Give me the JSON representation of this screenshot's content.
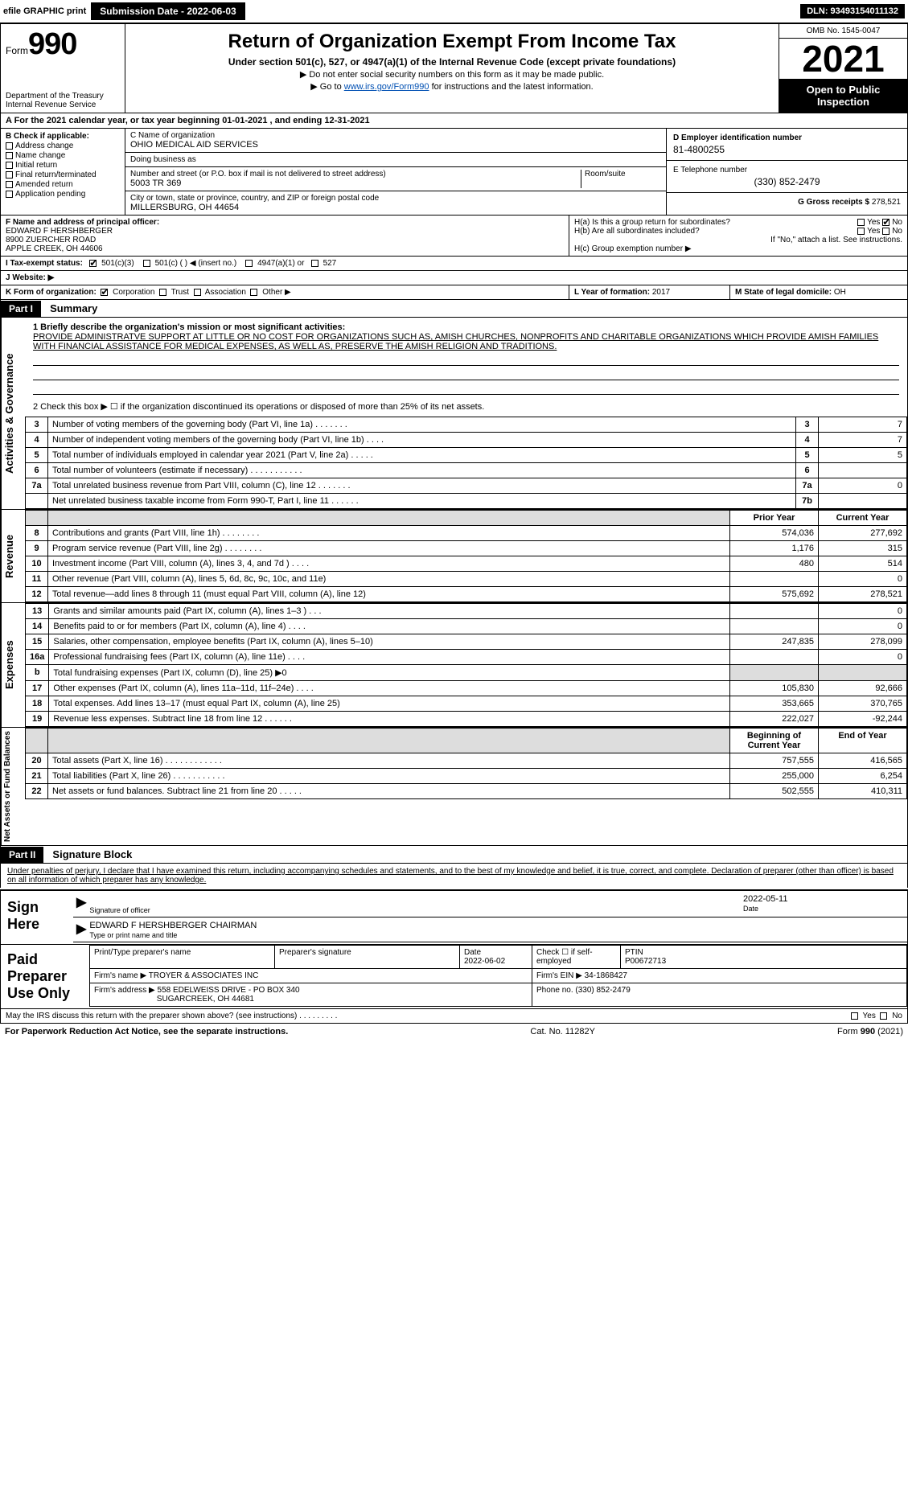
{
  "topbar": {
    "efile_label": "efile GRAPHIC print",
    "submission_label": "Submission Date - 2022-06-03",
    "dln_label": "DLN: 93493154011132"
  },
  "header": {
    "form_word": "Form",
    "form_number": "990",
    "dept": "Department of the Treasury",
    "irs": "Internal Revenue Service",
    "title": "Return of Organization Exempt From Income Tax",
    "subtitle": "Under section 501(c), 527, or 4947(a)(1) of the Internal Revenue Code (except private foundations)",
    "note1": "▶ Do not enter social security numbers on this form as it may be made public.",
    "note2_pre": "▶ Go to ",
    "note2_link": "www.irs.gov/Form990",
    "note2_post": " for instructions and the latest information.",
    "omb": "OMB No. 1545-0047",
    "year": "2021",
    "otp": "Open to Public Inspection"
  },
  "line_a": "A For the 2021 calendar year, or tax year beginning 01-01-2021    , and ending 12-31-2021",
  "box_b": {
    "heading": "B Check if applicable:",
    "items": [
      "Address change",
      "Name change",
      "Initial return",
      "Final return/terminated",
      "Amended return",
      "Application pending"
    ]
  },
  "box_c": {
    "name_label": "C Name of organization",
    "name": "OHIO MEDICAL AID SERVICES",
    "dba_label": "Doing business as",
    "dba": "",
    "street_label": "Number and street (or P.O. box if mail is not delivered to street address)",
    "room_label": "Room/suite",
    "street": "5003 TR 369",
    "city_label": "City or town, state or province, country, and ZIP or foreign postal code",
    "city": "MILLERSBURG, OH  44654"
  },
  "box_d": {
    "label": "D Employer identification number",
    "value": "81-4800255"
  },
  "box_e": {
    "label": "E Telephone number",
    "value": "(330) 852-2479"
  },
  "box_g": {
    "label": "G Gross receipts $",
    "value": "278,521"
  },
  "box_f": {
    "label": "F  Name and address of principal officer:",
    "l1": "EDWARD F HERSHBERGER",
    "l2": "8900 ZUERCHER ROAD",
    "l3": "APPLE CREEK, OH  44606"
  },
  "box_h": {
    "a_label": "H(a)  Is this a group return for subordinates?",
    "a_yes": "Yes",
    "a_no": "No",
    "b_label": "H(b)  Are all subordinates included?",
    "b_yes": "Yes",
    "b_no": "No",
    "b_note": "If \"No,\" attach a list. See instructions.",
    "c_label": "H(c)  Group exemption number ▶"
  },
  "box_i": {
    "label": "I  Tax-exempt status:",
    "o1": "501(c)(3)",
    "o2": "501(c) (  ) ◀ (insert no.)",
    "o3": "4947(a)(1) or",
    "o4": "527"
  },
  "box_j": {
    "label": "J  Website: ▶",
    "value": ""
  },
  "box_k": {
    "label": "K Form of organization:",
    "o1": "Corporation",
    "o2": "Trust",
    "o3": "Association",
    "o4": "Other ▶"
  },
  "box_l": {
    "label": "L Year of formation:",
    "value": "2017"
  },
  "box_m": {
    "label": "M State of legal domicile:",
    "value": "OH"
  },
  "part1": {
    "tag": "Part I",
    "title": "Summary",
    "l1_label": "1 Briefly describe the organization's mission or most significant activities:",
    "mission": "PROVIDE ADMINISTRATVE SUPPORT AT LITTLE OR NO COST FOR ORGANIZATIONS SUCH AS, AMISH CHURCHES, NONPROFITS AND CHARITABLE ORGANIZATIONS WHICH PROVIDE AMISH FAMILIES WITH FINANCIAL ASSISTANCE FOR MEDICAL EXPENSES, AS WELL AS, PRESERVE THE AMISH RELIGION AND TRADITIONS.",
    "l2": "2  Check this box ▶ ☐  if the organization discontinued its operations or disposed of more than 25% of its net assets.",
    "gov_rows": [
      {
        "n": "3",
        "t": "Number of voting members of the governing body (Part VI, line 1a)   .    .    .    .    .    .    .",
        "box": "3",
        "v": "7"
      },
      {
        "n": "4",
        "t": "Number of independent voting members of the governing body (Part VI, line 1b)  .    .    .    .",
        "box": "4",
        "v": "7"
      },
      {
        "n": "5",
        "t": "Total number of individuals employed in calendar year 2021 (Part V, line 2a)  .    .    .    .    .",
        "box": "5",
        "v": "5"
      },
      {
        "n": "6",
        "t": "Total number of volunteers (estimate if necessary)   .    .    .    .    .    .    .    .    .    .    .",
        "box": "6",
        "v": ""
      },
      {
        "n": "7a",
        "t": "Total unrelated business revenue from Part VIII, column (C), line 12  .    .    .    .    .    .    .",
        "box": "7a",
        "v": "0"
      },
      {
        "n": "",
        "t": "Net unrelated business taxable income from Form 990-T, Part I, line 11  .    .    .    .    .    .",
        "box": "7b",
        "v": ""
      }
    ],
    "col_prior": "Prior Year",
    "col_current": "Current Year",
    "rev_rows": [
      {
        "n": "8",
        "t": "Contributions and grants (Part VIII, line 1h)   .    .    .    .    .    .    .    .",
        "p": "574,036",
        "c": "277,692"
      },
      {
        "n": "9",
        "t": "Program service revenue (Part VIII, line 2g)   .    .    .    .    .    .    .    .",
        "p": "1,176",
        "c": "315"
      },
      {
        "n": "10",
        "t": "Investment income (Part VIII, column (A), lines 3, 4, and 7d )  .    .    .    .",
        "p": "480",
        "c": "514"
      },
      {
        "n": "11",
        "t": "Other revenue (Part VIII, column (A), lines 5, 6d, 8c, 9c, 10c, and 11e)",
        "p": "",
        "c": "0"
      },
      {
        "n": "12",
        "t": "Total revenue—add lines 8 through 11 (must equal Part VIII, column (A), line 12)",
        "p": "575,692",
        "c": "278,521"
      }
    ],
    "exp_rows": [
      {
        "n": "13",
        "t": "Grants and similar amounts paid (Part IX, column (A), lines 1–3 )  .    .    .",
        "p": "",
        "c": "0"
      },
      {
        "n": "14",
        "t": "Benefits paid to or for members (Part IX, column (A), line 4)  .    .    .    .",
        "p": "",
        "c": "0"
      },
      {
        "n": "15",
        "t": "Salaries, other compensation, employee benefits (Part IX, column (A), lines 5–10)",
        "p": "247,835",
        "c": "278,099"
      },
      {
        "n": "16a",
        "t": "Professional fundraising fees (Part IX, column (A), line 11e)  .    .    .    .",
        "p": "",
        "c": "0"
      },
      {
        "n": "b",
        "t": "Total fundraising expenses (Part IX, column (D), line 25) ▶0",
        "p": "__shade__",
        "c": "__shade__"
      },
      {
        "n": "17",
        "t": "Other expenses (Part IX, column (A), lines 11a–11d, 11f–24e)   .    .    .    .",
        "p": "105,830",
        "c": "92,666"
      },
      {
        "n": "18",
        "t": "Total expenses. Add lines 13–17 (must equal Part IX, column (A), line 25)",
        "p": "353,665",
        "c": "370,765"
      },
      {
        "n": "19",
        "t": "Revenue less expenses. Subtract line 18 from line 12  .    .    .    .    .    .",
        "p": "222,027",
        "c": "-92,244"
      }
    ],
    "col_begin": "Beginning of Current Year",
    "col_end": "End of Year",
    "net_rows": [
      {
        "n": "20",
        "t": "Total assets (Part X, line 16)  .    .    .    .    .    .    .    .    .    .    .    .",
        "p": "757,555",
        "c": "416,565"
      },
      {
        "n": "21",
        "t": "Total liabilities (Part X, line 26)  .    .    .    .    .    .    .    .    .    .    .",
        "p": "255,000",
        "c": "6,254"
      },
      {
        "n": "22",
        "t": "Net assets or fund balances. Subtract line 21 from line 20  .    .    .    .    .",
        "p": "502,555",
        "c": "410,311"
      }
    ],
    "vlabels": {
      "gov": "Activities & Governance",
      "rev": "Revenue",
      "exp": "Expenses",
      "net": "Net Assets or Fund Balances"
    }
  },
  "part2": {
    "tag": "Part II",
    "title": "Signature Block",
    "penalty": "Under penalties of perjury, I declare that I have examined this return, including accompanying schedules and statements, and to the best of my knowledge and belief, it is true, correct, and complete. Declaration of preparer (other than officer) is based on all information of which preparer has any knowledge.",
    "sign_here": "Sign Here",
    "sig_officer": "Signature of officer",
    "sig_date_label": "Date",
    "sig_date": "2022-05-11",
    "printed_name": "EDWARD F HERSHBERGER  CHAIRMAN",
    "printed_label": "Type or print name and title",
    "paid": "Paid Preparer Use Only",
    "prep_name_label": "Print/Type preparer's name",
    "prep_name": "",
    "prep_sig_label": "Preparer's signature",
    "prep_date_label": "Date",
    "prep_date": "2022-06-02",
    "prep_self": "Check ☐ if self-employed",
    "ptin_label": "PTIN",
    "ptin": "P00672713",
    "firm_name_label": "Firm's name    ▶",
    "firm_name": "TROYER & ASSOCIATES INC",
    "firm_ein_label": "Firm's EIN ▶",
    "firm_ein": "34-1868427",
    "firm_addr_label": "Firm's address ▶",
    "firm_addr1": "558 EDELWEISS DRIVE - PO BOX 340",
    "firm_addr2": "SUGARCREEK, OH  44681",
    "firm_phone_label": "Phone no.",
    "firm_phone": "(330) 852-2479",
    "discuss": "May the IRS discuss this return with the preparer shown above? (see instructions)   .    .    .    .    .    .    .    .    .",
    "yes": "Yes",
    "no": "No"
  },
  "footer": {
    "left": "For Paperwork Reduction Act Notice, see the separate instructions.",
    "mid": "Cat. No. 11282Y",
    "right": "Form 990 (2021)"
  }
}
